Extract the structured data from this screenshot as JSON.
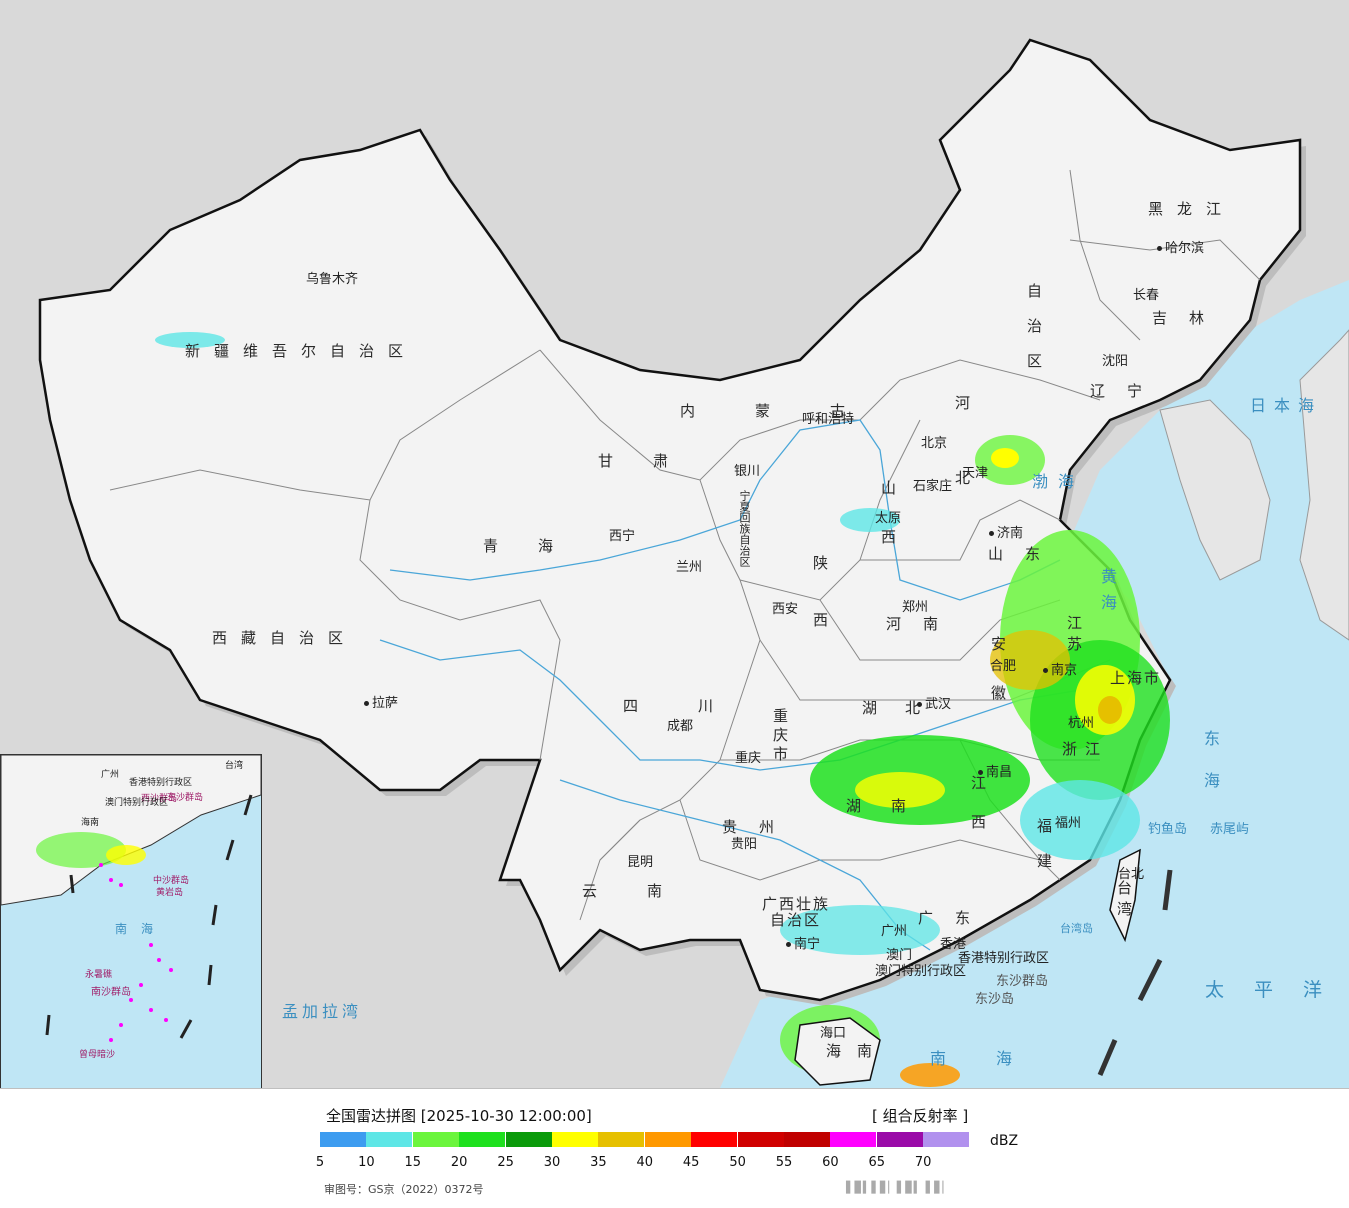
{
  "map": {
    "provinces": [
      {
        "id": "xinjiang",
        "label": "新疆维吾尔自治区"
      },
      {
        "id": "xizang",
        "label": "西藏自治区"
      },
      {
        "id": "qinghai",
        "label": "青海"
      },
      {
        "id": "gansu",
        "label": "甘肃"
      },
      {
        "id": "neimenggu",
        "label": "内蒙古"
      },
      {
        "id": "neimenggu2",
        "label": "自治区"
      },
      {
        "id": "heilongjiang",
        "label": "黑龙江"
      },
      {
        "id": "jilin",
        "label": "吉林"
      },
      {
        "id": "liaoning",
        "label": "辽宁"
      },
      {
        "id": "hebei",
        "label": "河北"
      },
      {
        "id": "shanxi",
        "label": "山西"
      },
      {
        "id": "shandong",
        "label": "山东"
      },
      {
        "id": "henan",
        "label": "河南"
      },
      {
        "id": "shaanxi",
        "label": "陕西"
      },
      {
        "id": "sichuan",
        "label": "四川"
      },
      {
        "id": "hubei",
        "label": "湖北"
      },
      {
        "id": "anhui",
        "label": "安徽"
      },
      {
        "id": "jiangsu",
        "label": "江苏"
      },
      {
        "id": "zhejiang",
        "label": "浙江"
      },
      {
        "id": "jiangxi",
        "label": "江西"
      },
      {
        "id": "hunan",
        "label": "湖南"
      },
      {
        "id": "guizhou",
        "label": "贵州"
      },
      {
        "id": "yunnan",
        "label": "云南"
      },
      {
        "id": "fujian",
        "label": "福建"
      },
      {
        "id": "guangdong",
        "label": "广东"
      },
      {
        "id": "guangxi",
        "label": "广西壮族"
      },
      {
        "id": "guangxi2",
        "label": "自治区"
      },
      {
        "id": "chongqing",
        "label": "重庆市"
      },
      {
        "id": "shanghai",
        "label": "上海市"
      },
      {
        "id": "taiwan",
        "label": "台湾"
      },
      {
        "id": "hainan",
        "label": "海南"
      },
      {
        "id": "ningxia",
        "label": "宁夏回族自治区"
      },
      {
        "id": "hongkong",
        "label": "香港特别行政区"
      },
      {
        "id": "macao",
        "label": "澳门特别行政区"
      }
    ],
    "cities": [
      {
        "id": "urumqi",
        "label": "乌鲁木齐"
      },
      {
        "id": "lhasa",
        "label": "拉萨"
      },
      {
        "id": "xining",
        "label": "西宁"
      },
      {
        "id": "lanzhou",
        "label": "兰州"
      },
      {
        "id": "yinchuan",
        "label": "银川"
      },
      {
        "id": "hohhot",
        "label": "呼和浩特"
      },
      {
        "id": "harbin",
        "label": "哈尔滨"
      },
      {
        "id": "changchun",
        "label": "长春"
      },
      {
        "id": "shenyang",
        "label": "沈阳"
      },
      {
        "id": "beijing",
        "label": "北京"
      },
      {
        "id": "tianjin",
        "label": "天津"
      },
      {
        "id": "shijiazhuang",
        "label": "石家庄"
      },
      {
        "id": "taiyuan",
        "label": "太原"
      },
      {
        "id": "jinan",
        "label": "济南"
      },
      {
        "id": "zhengzhou",
        "label": "郑州"
      },
      {
        "id": "xian",
        "label": "西安"
      },
      {
        "id": "chengdu",
        "label": "成都"
      },
      {
        "id": "chongqing_c",
        "label": "重庆"
      },
      {
        "id": "wuhan",
        "label": "武汉"
      },
      {
        "id": "hefei",
        "label": "合肥"
      },
      {
        "id": "nanjing",
        "label": "南京"
      },
      {
        "id": "hangzhou",
        "label": "杭州"
      },
      {
        "id": "nanchang",
        "label": "南昌"
      },
      {
        "id": "guiyang",
        "label": "贵阳"
      },
      {
        "id": "kunming",
        "label": "昆明"
      },
      {
        "id": "fuzhou",
        "label": "福州"
      },
      {
        "id": "taipei",
        "label": "台北"
      },
      {
        "id": "guangzhou",
        "label": "广州"
      },
      {
        "id": "nanning",
        "label": "南宁"
      },
      {
        "id": "macao_c",
        "label": "澳门"
      },
      {
        "id": "hongkong_c",
        "label": "香港"
      },
      {
        "id": "haikou",
        "label": "海口"
      }
    ],
    "seas": [
      {
        "id": "bohai",
        "label": "渤海"
      },
      {
        "id": "huanghai",
        "label": "黄海"
      },
      {
        "id": "donghai",
        "label": "东海"
      },
      {
        "id": "nanhai",
        "label": "南海"
      },
      {
        "id": "taipingyang",
        "label": "太平洋"
      },
      {
        "id": "ribenhai",
        "label": "日本海"
      },
      {
        "id": "mengjialawan",
        "label": "孟加拉湾"
      }
    ],
    "islands": [
      {
        "id": "diaoyu",
        "label": "钓鱼岛"
      },
      {
        "id": "chiwei",
        "label": "赤尾屿"
      },
      {
        "id": "dongsha",
        "label": "东沙群岛"
      },
      {
        "id": "dongsha2",
        "label": "东沙岛"
      },
      {
        "id": "taiwan_bank",
        "label": "台湾岛"
      }
    ],
    "inset": {
      "labels": [
        "中沙群岛",
        "黄岩岛",
        "南海",
        "南沙群岛",
        "永暑礁",
        "曾母暗沙",
        "西沙群岛",
        "广州",
        "香港特别行政区",
        "澳门特别行政区",
        "东沙群岛",
        "台湾",
        "海南"
      ]
    }
  },
  "legend": {
    "title": "全国雷达拼图 [2025-10-30 12:00:00]",
    "product": "[ 组合反射率 ]",
    "unit": "dBZ",
    "ticks": [
      "5",
      "10",
      "15",
      "20",
      "25",
      "30",
      "35",
      "40",
      "45",
      "50",
      "55",
      "60",
      "65",
      "70"
    ],
    "colors": [
      "#3d9cf0",
      "#5ee6e6",
      "#6bf53d",
      "#1ee01e",
      "#0a9a0a",
      "#ffff00",
      "#e6c000",
      "#ff9900",
      "#ff0000",
      "#d00000",
      "#c00000",
      "#ff00ff",
      "#9a0aa8",
      "#b191ee"
    ],
    "approval": "审图号：GS京（2022）0372号",
    "watermark": "▌▊▍▌▋▏▌▊▍ ▌▋▏"
  }
}
